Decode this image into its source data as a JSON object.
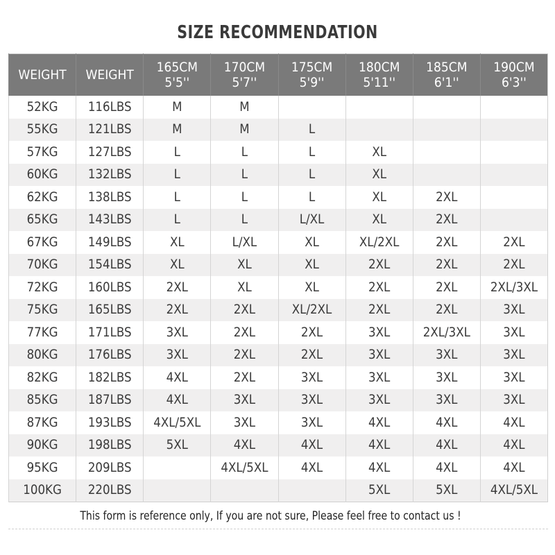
{
  "title": "SIZE RECOMMENDATION",
  "headers": [
    {
      "line1": "WEIGHT",
      "line2": ""
    },
    {
      "line1": "WEIGHT",
      "line2": ""
    },
    {
      "line1": "165CM",
      "line2": "5'5''"
    },
    {
      "line1": "170CM",
      "line2": "5'7''"
    },
    {
      "line1": "175CM",
      "line2": "5'9''"
    },
    {
      "line1": "180CM",
      "line2": "5'11''"
    },
    {
      "line1": "185CM",
      "line2": "6'1''"
    },
    {
      "line1": "190CM",
      "line2": "6'3''"
    }
  ],
  "rows": [
    [
      "52KG",
      "116LBS",
      "M",
      "M",
      "",
      "",
      "",
      ""
    ],
    [
      "55KG",
      "121LBS",
      "M",
      "M",
      "L",
      "",
      "",
      ""
    ],
    [
      "57KG",
      "127LBS",
      "L",
      "L",
      "L",
      "XL",
      "",
      ""
    ],
    [
      "60KG",
      "132LBS",
      "L",
      "L",
      "L",
      "XL",
      "",
      ""
    ],
    [
      "62KG",
      "138LBS",
      "L",
      "L",
      "L",
      "XL",
      "2XL",
      ""
    ],
    [
      "65KG",
      "143LBS",
      "L",
      "L",
      "L/XL",
      "XL",
      "2XL",
      ""
    ],
    [
      "67KG",
      "149LBS",
      "XL",
      "L/XL",
      "XL",
      "XL/2XL",
      "2XL",
      "2XL"
    ],
    [
      "70KG",
      "154LBS",
      "XL",
      "XL",
      "XL",
      "2XL",
      "2XL",
      "2XL"
    ],
    [
      "72KG",
      "160LBS",
      "2XL",
      "XL",
      "XL",
      "2XL",
      "2XL",
      "2XL/3XL"
    ],
    [
      "75KG",
      "165LBS",
      "2XL",
      "2XL",
      "XL/2XL",
      "2XL",
      "2XL",
      "3XL"
    ],
    [
      "77KG",
      "171LBS",
      "3XL",
      "2XL",
      "2XL",
      "3XL",
      "2XL/3XL",
      "3XL"
    ],
    [
      "80KG",
      "176LBS",
      "3XL",
      "2XL",
      "2XL",
      "3XL",
      "3XL",
      "3XL"
    ],
    [
      "82KG",
      "182LBS",
      "4XL",
      "2XL",
      "3XL",
      "3XL",
      "3XL",
      "3XL"
    ],
    [
      "85KG",
      "187LBS",
      "4XL",
      "3XL",
      "3XL",
      "3XL",
      "3XL",
      "3XL"
    ],
    [
      "87KG",
      "193LBS",
      "4XL/5XL",
      "3XL",
      "3XL",
      "4XL",
      "4XL",
      "4XL"
    ],
    [
      "90KG",
      "198LBS",
      "5XL",
      "4XL",
      "4XL",
      "4XL",
      "4XL",
      "4XL"
    ],
    [
      "95KG",
      "209LBS",
      "",
      "4XL/5XL",
      "4XL",
      "4XL",
      "4XL",
      "4XL"
    ],
    [
      "100KG",
      "220LBS",
      "",
      "",
      "",
      "5XL",
      "5XL",
      "4XL/5XL"
    ]
  ],
  "footer": "This form is reference only, If you are not sure, Please feel free to contact us !",
  "colors": {
    "header_bg": "#7a7a7a",
    "stripe": "#f0efef"
  }
}
